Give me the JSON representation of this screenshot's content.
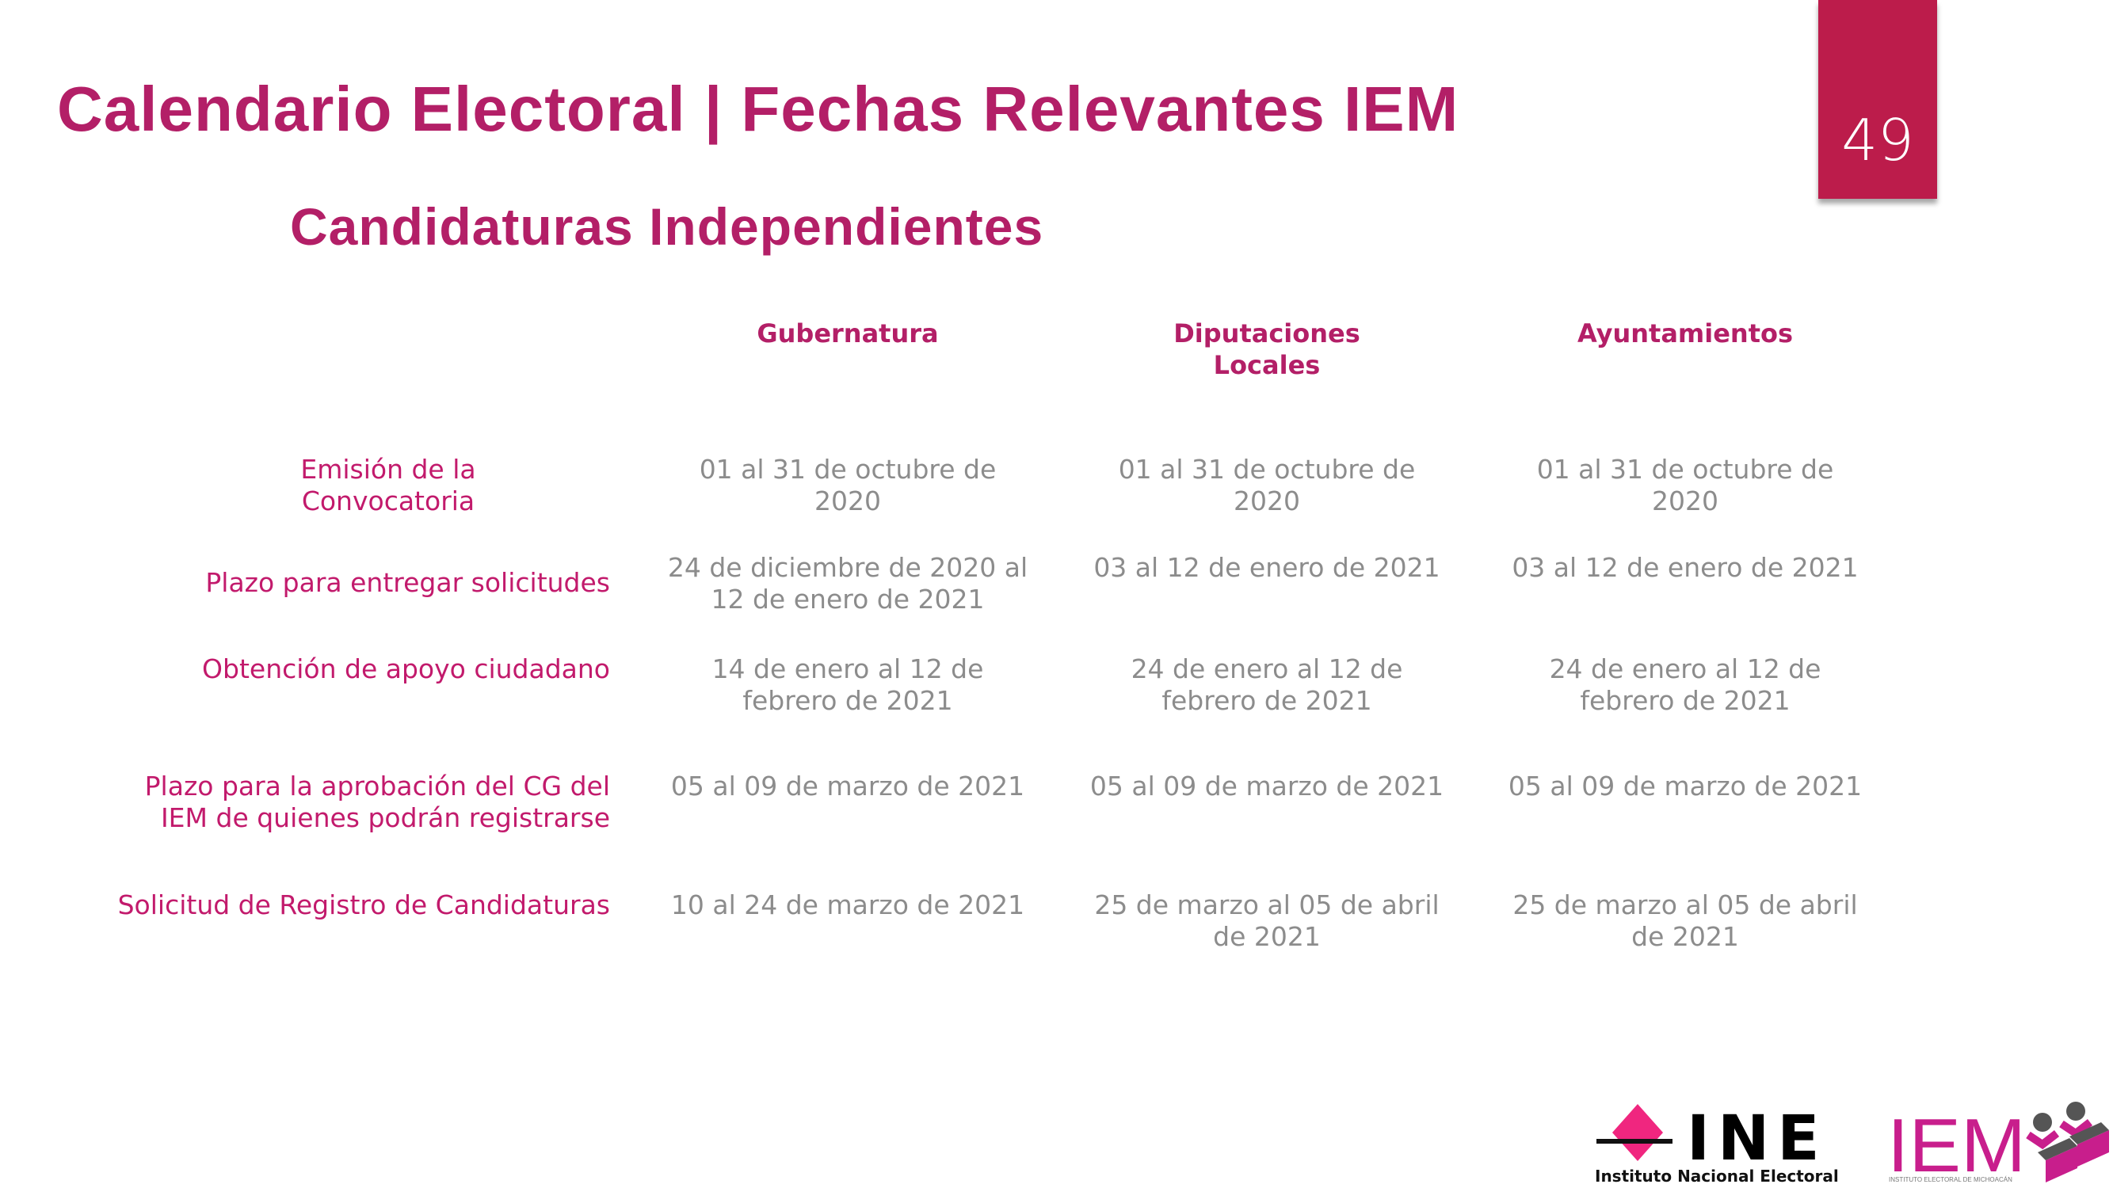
{
  "header": {
    "title": "Calendario Electoral | Fechas Relevantes IEM",
    "subtitle": "Candidaturas Independientes",
    "page_number": "49"
  },
  "table": {
    "columns": [
      "Gubernatura",
      "Diputaciones Locales",
      "Ayuntamientos"
    ],
    "rows": [
      {
        "label": "Emisión de la Convocatoria",
        "values": [
          "01 al 31 de octubre de 2020",
          "01 al 31 de octubre de 2020",
          "01 al 31 de octubre de 2020"
        ]
      },
      {
        "label": "Plazo para entregar solicitudes",
        "values": [
          "24 de diciembre de 2020 al 12 de enero de 2021",
          "03 al 12 de enero de 2021",
          "03 al 12 de enero de 2021"
        ]
      },
      {
        "label": "Obtención de apoyo ciudadano",
        "values": [
          "14 de enero al 12 de febrero de 2021",
          "24 de enero al 12 de febrero de 2021",
          "24 de enero al 12 de febrero de 2021"
        ]
      },
      {
        "label": "Plazo para la aprobación del CG del IEM de quienes podrán registrarse",
        "values": [
          "05 al 09 de marzo de 2021",
          "05 al 09 de marzo de 2021",
          "05 al 09 de marzo de 2021"
        ]
      },
      {
        "label": "Solicitud de Registro de Candidaturas",
        "values": [
          "10 al 24 de marzo de 2021",
          "25 de marzo al 05 de abril de 2021",
          "25 de marzo al 05 de abril de 2021"
        ]
      }
    ]
  },
  "logos": {
    "ine": {
      "text": "INE",
      "caption": "Instituto Nacional Electoral"
    },
    "iem": {
      "text": "IEM",
      "caption": "INSTITUTO ELECTORAL DE MICHOACÁN"
    }
  },
  "colors": {
    "accent": "#b31f67",
    "page_box": "#bc1c4b",
    "value_text": "#8c8c8c",
    "ine_pink": "#f0267f",
    "iem_magenta": "#c81e8c"
  }
}
